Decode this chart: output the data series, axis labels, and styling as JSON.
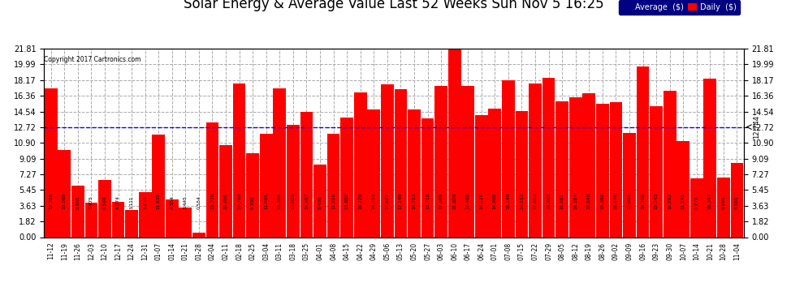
{
  "title": "Solar Energy & Average Value Last 52 Weeks Sun Nov 5 16:25",
  "copyright": "Copyright 2017 Cartronics.com",
  "average_line": 12.744,
  "bar_color": "#ff0000",
  "average_line_color": "#0000ff",
  "background_color": "#ffffff",
  "grid_color": "#cccccc",
  "ylim": [
    0,
    21.81
  ],
  "yticks": [
    0.0,
    1.82,
    3.63,
    5.45,
    7.27,
    9.09,
    10.9,
    12.72,
    14.54,
    16.36,
    18.17,
    19.99,
    21.81
  ],
  "categories": [
    "11-12",
    "11-19",
    "11-26",
    "12-03",
    "12-10",
    "12-17",
    "12-24",
    "12-31",
    "01-07",
    "01-14",
    "01-21",
    "01-28",
    "02-04",
    "02-11",
    "02-18",
    "02-25",
    "03-04",
    "03-11",
    "03-18",
    "03-25",
    "04-01",
    "04-08",
    "04-15",
    "04-22",
    "04-29",
    "05-06",
    "05-13",
    "05-20",
    "05-27",
    "06-03",
    "06-10",
    "06-17",
    "06-24",
    "07-01",
    "07-08",
    "07-15",
    "07-22",
    "07-29",
    "08-05",
    "08-12",
    "08-19",
    "08-26",
    "09-02",
    "09-09",
    "09-16",
    "09-23",
    "09-30",
    "10-07",
    "10-14",
    "10-21",
    "10-28",
    "11-04"
  ],
  "values": [
    17.226,
    10.069,
    5.961,
    3.975,
    6.569,
    4.074,
    3.111,
    5.21,
    11.835,
    4.354,
    3.445,
    0.554,
    13.276,
    10.605,
    17.76,
    9.7,
    11.965,
    17.206,
    13.029,
    14.497,
    8.436,
    11.916,
    13.882,
    16.72,
    14.753,
    17.677,
    17.149,
    14.753,
    13.718,
    17.509,
    21.809,
    17.465,
    14.126,
    14.908,
    18.14,
    14.552,
    17.813,
    18.463,
    15.681,
    16.184,
    16.648,
    15.392,
    15.576,
    12.037,
    19.708,
    15.143,
    16.892,
    11.141,
    6.777,
    18.347,
    6.891,
    8.561
  ],
  "legend_avg_text": "Average  ($)",
  "legend_daily_text": "Daily  ($)",
  "legend_avg_color": "#000080",
  "legend_daily_color": "#ff0000"
}
